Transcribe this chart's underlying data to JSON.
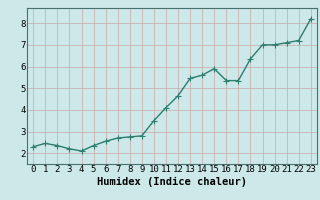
{
  "x": [
    0,
    1,
    2,
    3,
    4,
    5,
    6,
    7,
    8,
    9,
    10,
    11,
    12,
    13,
    14,
    15,
    16,
    17,
    18,
    19,
    20,
    21,
    22,
    23
  ],
  "y": [
    2.3,
    2.45,
    2.35,
    2.2,
    2.1,
    2.35,
    2.55,
    2.7,
    2.75,
    2.8,
    3.5,
    4.1,
    4.65,
    5.45,
    5.6,
    5.9,
    5.35,
    5.35,
    6.35,
    7.0,
    7.0,
    7.1,
    7.2,
    8.2
  ],
  "line_color": "#2e7d6e",
  "marker_color": "#2e7d6e",
  "bg_color": "#cce8e8",
  "grid_color": "#b8d4d4",
  "xlabel": "Humidex (Indice chaleur)",
  "xlim": [
    -0.5,
    23.5
  ],
  "ylim": [
    1.5,
    8.7
  ],
  "yticks": [
    2,
    3,
    4,
    5,
    6,
    7,
    8
  ],
  "xticks": [
    0,
    1,
    2,
    3,
    4,
    5,
    6,
    7,
    8,
    9,
    10,
    11,
    12,
    13,
    14,
    15,
    16,
    17,
    18,
    19,
    20,
    21,
    22,
    23
  ],
  "tick_labelsize": 6.5,
  "xlabel_fontsize": 7.5,
  "marker_size": 2.5,
  "line_width": 1.0
}
